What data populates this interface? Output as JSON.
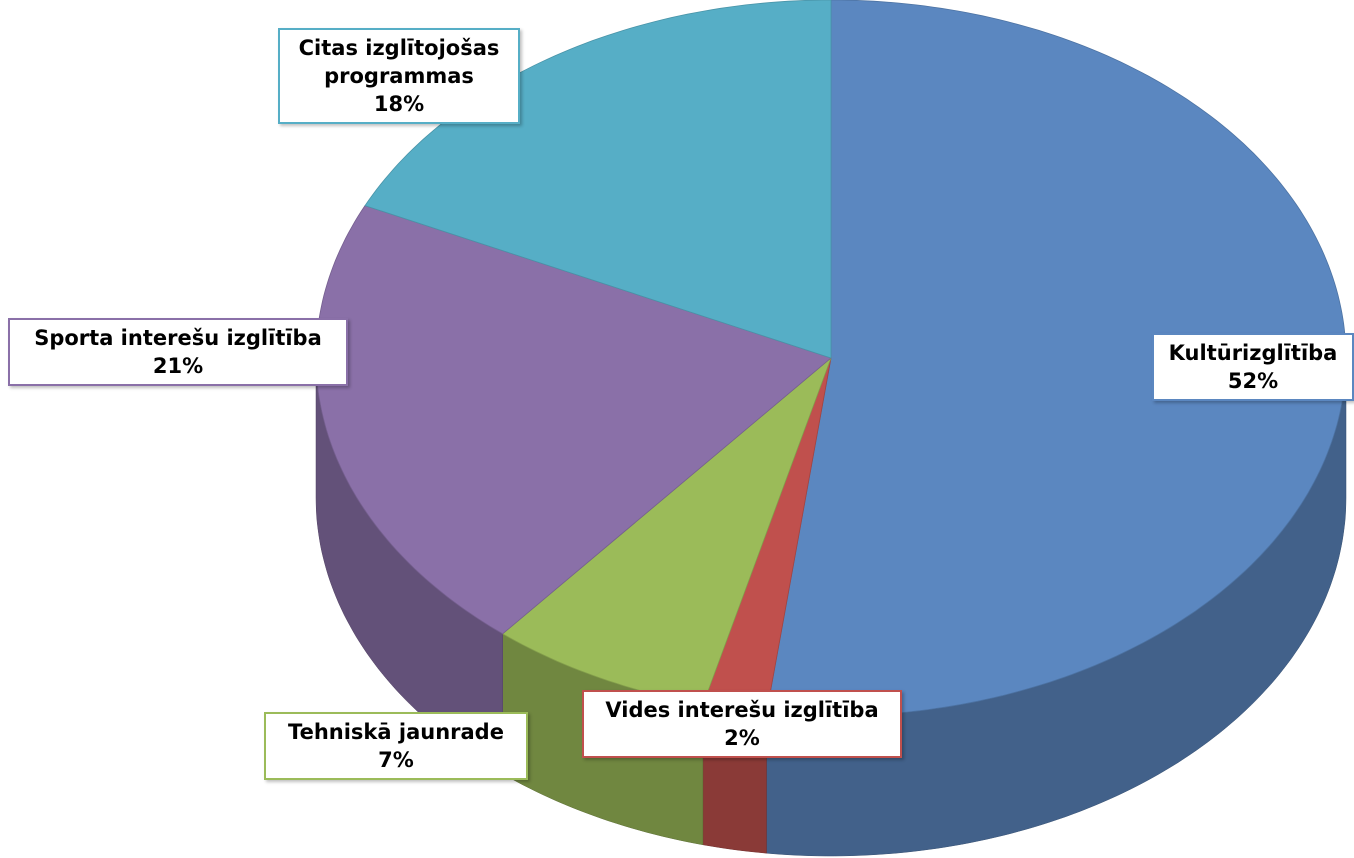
{
  "chart_data": {
    "type": "pie",
    "categories": [
      "Kultūrizglītība",
      "Vides interešu izglītība",
      "Tehniskā jaunrade",
      "Sporta interešu izglītība",
      "Citas izglītojošas programmas"
    ],
    "values": [
      52,
      2,
      7,
      21,
      18
    ],
    "value_labels": [
      "52%",
      "2%",
      "7%",
      "21%",
      "18%"
    ],
    "colors": [
      "#5b87c0",
      "#c0504d",
      "#9bbb59",
      "#8a70a8",
      "#56aec6"
    ]
  }
}
